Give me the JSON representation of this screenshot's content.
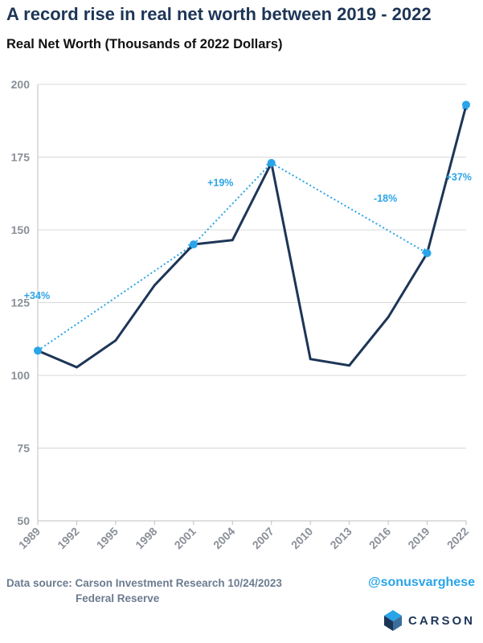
{
  "header": {
    "title": "A record rise in real net worth between 2019 - 2022",
    "subtitle": "Real Net Worth (Thousands of 2022 Dollars)"
  },
  "footer": {
    "source_line1": "Data source: Carson Investment Research   10/24/2023",
    "source_line2": "Federal Reserve",
    "handle": "@sonusvarghese",
    "brand": "CARSON"
  },
  "colors": {
    "line": "#1d3557",
    "accent": "#2aa4e8",
    "grid": "#d9d9d9",
    "axis_text": "#8a8f98"
  },
  "chart_data": {
    "type": "line",
    "title": "Real Net Worth (Thousands of 2022 Dollars)",
    "x": [
      "1989",
      "1992",
      "1995",
      "1998",
      "2001",
      "2004",
      "2007",
      "2010",
      "2013",
      "2016",
      "2019",
      "2022"
    ],
    "series": [
      {
        "values": [
          108.5,
          102.8,
          112,
          131,
          145,
          146.5,
          173,
          105.6,
          103.4,
          120,
          142,
          192.7
        ]
      }
    ],
    "ylim": [
      50,
      200
    ],
    "yticks": [
      50,
      75,
      100,
      125,
      150,
      175,
      200
    ],
    "grid": true,
    "annotations": [
      {
        "from": "1989",
        "to": "2001",
        "from_value": 108.5,
        "to_value": 145,
        "label": "+34%"
      },
      {
        "from": "2001",
        "to": "2007",
        "from_value": 145,
        "to_value": 173,
        "label": "+19%"
      },
      {
        "from": "2007",
        "to": "2019",
        "from_value": 173,
        "to_value": 142,
        "label": "-18%"
      },
      {
        "from": "2019",
        "to": "2022",
        "from_value": 142,
        "to_value": 193,
        "label": "+37%"
      }
    ]
  }
}
